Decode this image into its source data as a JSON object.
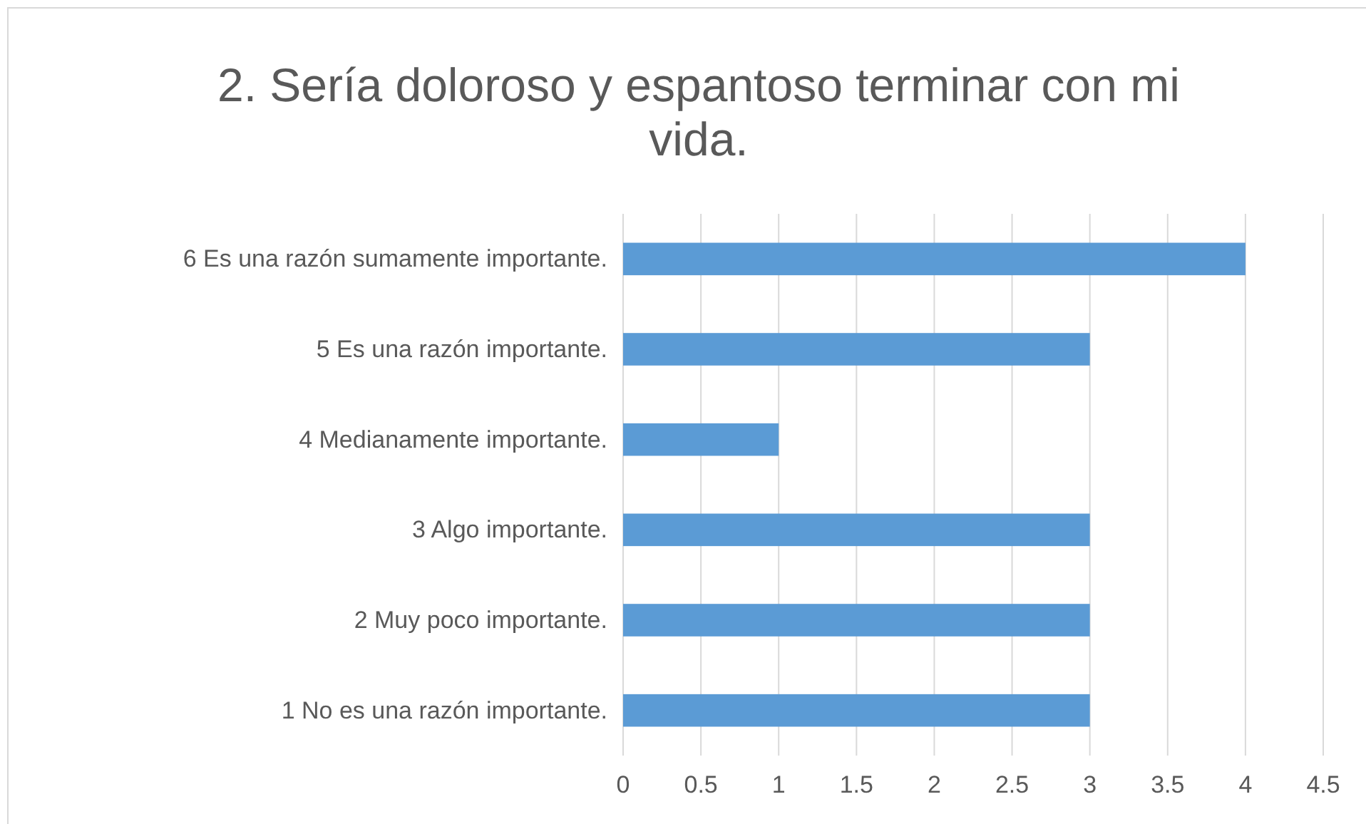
{
  "chart_data": {
    "type": "bar",
    "orientation": "horizontal",
    "title": "2. Sería doloroso y espantoso terminar con mi vida.",
    "categories": [
      "6 Es una razón sumamente importante.",
      "5 Es una razón importante.",
      "4 Medianamente importante.",
      "3 Algo importante.",
      "2 Muy poco importante.",
      "1 No es una razón importante."
    ],
    "values": [
      4,
      3,
      1,
      3,
      3,
      3
    ],
    "color": "#5b9bd5",
    "xlim": [
      0,
      4.5
    ],
    "xticks": [
      0,
      0.5,
      1,
      1.5,
      2,
      2.5,
      3,
      3.5,
      4,
      4.5
    ],
    "grid": "x"
  }
}
